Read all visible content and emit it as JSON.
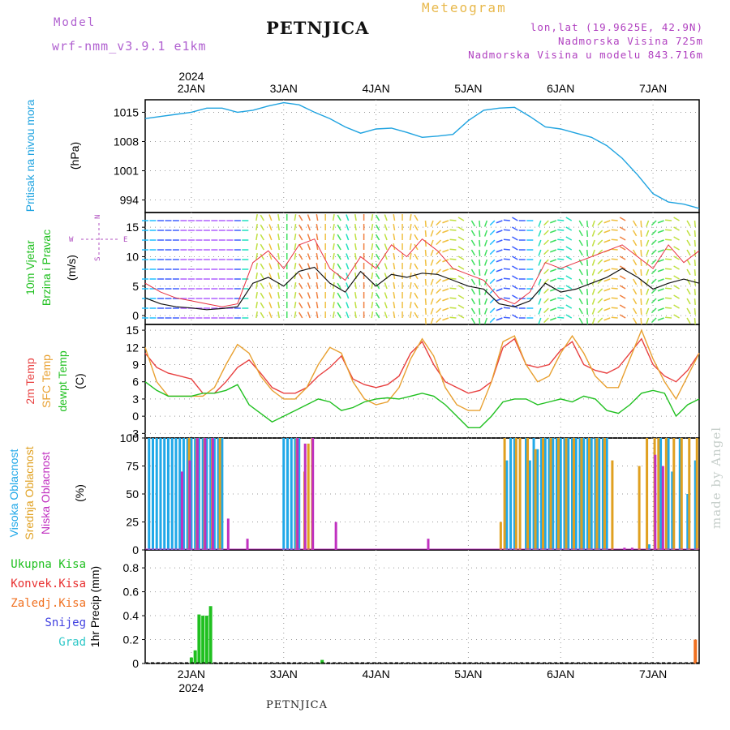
{
  "header": {
    "title": "PETNJICA",
    "meteogram": "Meteogram",
    "model_label": "Model",
    "model_name": "wrf-nmm_v3.9.1 e1km",
    "lonlat": "lon,lat (19.9625E, 42.9N)",
    "elevation": "Nadmorska Visina 725m",
    "model_elevation": "Nadmorska Visina u modelu 843.716m"
  },
  "footer": {
    "station": "PETNJICA",
    "credit": "made by Angel"
  },
  "colors": {
    "pressure": "#1fa3e0",
    "wind_speed": "#111111",
    "gust": "#e83040",
    "temp2m": "#e84040",
    "sfc": "#e8a030",
    "dewpt": "#20c020",
    "high_cloud": "#20a8e8",
    "mid_cloud": "#e0a020",
    "low_cloud": "#c030c0",
    "total_precip": "#20c020",
    "conv_precip": "#e83030",
    "frozen": "#f07020",
    "snow": "#4040e0",
    "hail": "#30c8c8"
  },
  "chart_data": [
    {
      "type": "line",
      "panel": "pressure",
      "ylabel": [
        "Pritisak na nivou mora",
        "(hPa)"
      ],
      "yticks": [
        994,
        1001,
        1008,
        1015
      ],
      "ylim": [
        991,
        1018
      ],
      "xlim": [
        0,
        144
      ],
      "x_day_labels": [
        "2JAN",
        "3JAN",
        "4JAN",
        "5JAN",
        "6JAN",
        "7JAN"
      ],
      "x_day_positions": [
        12,
        36,
        60,
        84,
        108,
        132
      ],
      "year": "2024",
      "grid": true,
      "series": [
        {
          "x": [
            0,
            4,
            8,
            12,
            16,
            20,
            24,
            28,
            32,
            36,
            40,
            44,
            48,
            52,
            56,
            60,
            64,
            68,
            72,
            76,
            80,
            84,
            88,
            92,
            96,
            100,
            104,
            108,
            112,
            116,
            120,
            124,
            128,
            132,
            136,
            140,
            144
          ],
          "y": [
            1013.5,
            1014,
            1014.5,
            1015,
            1016,
            1016,
            1015,
            1015.5,
            1016.5,
            1017.3,
            1016.8,
            1015,
            1013.5,
            1011.5,
            1010,
            1011,
            1011.2,
            1010.2,
            1009,
            1009.3,
            1009.7,
            1013,
            1015.5,
            1016,
            1016.2,
            1014,
            1011.5,
            1011,
            1010,
            1009,
            1007,
            1004,
            1000,
            995.5,
            993.5,
            993,
            992
          ]
        }
      ]
    },
    {
      "type": "line",
      "panel": "wind",
      "ylabel": [
        "10m Vjetar",
        "Brzina i Pravac",
        "(m/s)"
      ],
      "compass": [
        "N",
        "E",
        "S",
        "W"
      ],
      "yticks": [
        0,
        5,
        10,
        15
      ],
      "ylim": [
        -1.5,
        17.5
      ],
      "xlim": [
        0,
        144
      ],
      "grid": true,
      "series": [
        {
          "x": [
            0,
            4,
            8,
            12,
            16,
            20,
            24,
            28,
            32,
            36,
            40,
            44,
            48,
            52,
            56,
            60,
            64,
            68,
            72,
            76,
            80,
            84,
            88,
            92,
            96,
            100,
            104,
            108,
            112,
            116,
            120,
            124,
            128,
            132,
            136,
            140,
            144
          ],
          "y": [
            3,
            2,
            1.5,
            1.3,
            1,
            1.2,
            1.5,
            5.5,
            6.5,
            5,
            7.5,
            8.2,
            5.5,
            4,
            7.5,
            5,
            7,
            6.5,
            7.2,
            7,
            6,
            5,
            4.5,
            2,
            1.5,
            2.5,
            5.5,
            4,
            4.5,
            5.5,
            6.5,
            8,
            6.5,
            4.5,
            5.5,
            6.2,
            5.5
          ]
        },
        {
          "x": [
            0,
            4,
            8,
            12,
            16,
            20,
            24,
            28,
            32,
            36,
            40,
            44,
            48,
            52,
            56,
            60,
            64,
            68,
            72,
            76,
            80,
            84,
            88,
            92,
            96,
            100,
            104,
            108,
            112,
            116,
            120,
            124,
            128,
            132,
            136,
            140,
            144
          ],
          "y": [
            5.5,
            4,
            3,
            2.5,
            2,
            1.5,
            2,
            9,
            11,
            8,
            12,
            13,
            8,
            6,
            10,
            8,
            12,
            10,
            13,
            11,
            8,
            7,
            6,
            3,
            2,
            4,
            9,
            8,
            9,
            10,
            11,
            12,
            10,
            8,
            12,
            9,
            11
          ]
        }
      ]
    },
    {
      "type": "line",
      "panel": "temperature",
      "ylabel": [
        "2m Temp",
        "SFC Temp",
        "dewpt Temp",
        "(C)"
      ],
      "yticks": [
        -3,
        0,
        3,
        6,
        9,
        12,
        15
      ],
      "ylim": [
        -3.8,
        16
      ],
      "xlim": [
        0,
        144
      ],
      "grid": true,
      "series": [
        {
          "x": [
            0,
            3,
            6,
            9,
            12,
            15,
            18,
            21,
            24,
            27,
            30,
            33,
            36,
            39,
            42,
            45,
            48,
            51,
            54,
            57,
            60,
            63,
            66,
            69,
            72,
            75,
            78,
            81,
            84,
            87,
            90,
            93,
            96,
            99,
            102,
            105,
            108,
            111,
            114,
            117,
            120,
            123,
            126,
            129,
            132,
            135,
            138,
            141,
            144
          ],
          "y": [
            11,
            8.5,
            7.5,
            7,
            6.5,
            4,
            4,
            6,
            8.5,
            9.8,
            7.5,
            5,
            4,
            4,
            5,
            7,
            8.5,
            10.5,
            6.5,
            5.5,
            5,
            5.5,
            7,
            11,
            13,
            9,
            6,
            5,
            4,
            4.5,
            6,
            12,
            13.5,
            9,
            8.5,
            9,
            11.5,
            13,
            9,
            8,
            7.5,
            8.5,
            11,
            13.5,
            9,
            7,
            6,
            8,
            11
          ]
        },
        {
          "x": [
            0,
            3,
            6,
            9,
            12,
            15,
            18,
            21,
            24,
            27,
            30,
            33,
            36,
            39,
            42,
            45,
            48,
            51,
            54,
            57,
            60,
            63,
            66,
            69,
            72,
            75,
            78,
            81,
            84,
            87,
            90,
            93,
            96,
            99,
            102,
            105,
            108,
            111,
            114,
            117,
            120,
            123,
            126,
            129,
            132,
            135,
            138,
            141,
            144
          ],
          "y": [
            12,
            6,
            3.5,
            3.5,
            3.5,
            3.5,
            5,
            9,
            12.5,
            11,
            7,
            4.5,
            3,
            3,
            5,
            9,
            12,
            11,
            6,
            3,
            2,
            2.5,
            5,
            10,
            13.5,
            10.5,
            5,
            2,
            1,
            1,
            6,
            13,
            14,
            9,
            6,
            7,
            11,
            14,
            11,
            7,
            5,
            5,
            10,
            15,
            10,
            6,
            3,
            7,
            11
          ]
        },
        {
          "x": [
            0,
            3,
            6,
            9,
            12,
            15,
            18,
            21,
            24,
            27,
            30,
            33,
            36,
            39,
            42,
            45,
            48,
            51,
            54,
            57,
            60,
            63,
            66,
            69,
            72,
            75,
            78,
            81,
            84,
            87,
            90,
            93,
            96,
            99,
            102,
            105,
            108,
            111,
            114,
            117,
            120,
            123,
            126,
            129,
            132,
            135,
            138,
            141,
            144
          ],
          "y": [
            6,
            4.5,
            3.5,
            3.5,
            3.5,
            4,
            4,
            4.5,
            5.5,
            2,
            0.5,
            -1,
            0,
            1,
            2,
            3,
            2.5,
            1,
            1.5,
            2.5,
            3,
            3.2,
            3,
            3.5,
            4,
            3.5,
            2,
            0,
            -2,
            -2,
            0,
            2.5,
            3,
            3,
            2,
            2.5,
            3,
            2.5,
            3.5,
            3,
            1,
            0.5,
            2,
            4,
            4.5,
            4,
            0,
            2,
            3
          ]
        }
      ]
    },
    {
      "type": "bar",
      "panel": "cloud",
      "ylabel": [
        "Visoka Oblacnost",
        "Srednja Oblacnost",
        "Niska Oblacnost",
        "(%)"
      ],
      "yticks": [
        0,
        25,
        50,
        75,
        100
      ],
      "ylim": [
        0,
        100
      ],
      "xlim": [
        0,
        144
      ],
      "grid": true,
      "series": [
        {
          "name": "Visoka Oblacnost",
          "x": [
            1,
            2,
            3,
            4,
            5,
            6,
            7,
            8,
            9,
            10,
            11,
            12,
            13,
            14,
            15,
            16,
            17,
            18,
            19,
            20,
            36,
            37,
            38,
            39,
            40,
            94,
            95,
            96,
            99,
            100,
            101,
            102,
            103,
            104,
            105,
            106,
            107,
            108,
            109,
            110,
            111,
            112,
            113,
            114,
            115,
            116,
            117,
            118,
            119,
            120,
            131,
            134,
            136,
            137,
            139,
            141,
            143
          ],
          "y": [
            100,
            100,
            100,
            100,
            100,
            100,
            100,
            100,
            100,
            100,
            100,
            100,
            100,
            100,
            100,
            100,
            100,
            100,
            100,
            100,
            100,
            100,
            100,
            100,
            100,
            80,
            100,
            100,
            100,
            80,
            100,
            90,
            100,
            100,
            100,
            100,
            100,
            100,
            100,
            100,
            100,
            100,
            100,
            100,
            100,
            100,
            100,
            100,
            100,
            100,
            5,
            100,
            100,
            70,
            100,
            50,
            80
          ]
        },
        {
          "name": "Srednja Oblacnost",
          "x": [
            11,
            13,
            15,
            17,
            19,
            39,
            41,
            42,
            43,
            92,
            93,
            96,
            97,
            99,
            101,
            103,
            105,
            107,
            109,
            111,
            113,
            115,
            117,
            119,
            121,
            128,
            130,
            132,
            133,
            135,
            137,
            139,
            141,
            143
          ],
          "y": [
            100,
            100,
            100,
            100,
            100,
            100,
            70,
            95,
            100,
            25,
            100,
            100,
            100,
            100,
            90,
            100,
            100,
            100,
            100,
            100,
            100,
            100,
            100,
            100,
            80,
            75,
            100,
            100,
            100,
            100,
            100,
            100,
            100,
            100
          ]
        },
        {
          "name": "Niska Oblacnost",
          "x": [
            10,
            12,
            14,
            16,
            18,
            22,
            27,
            40,
            42,
            44,
            50,
            74,
            125,
            127,
            133,
            135
          ],
          "y": [
            70,
            80,
            100,
            100,
            100,
            28,
            10,
            100,
            95,
            100,
            25,
            10,
            2,
            2,
            85,
            75
          ]
        }
      ]
    },
    {
      "type": "bar",
      "panel": "precip",
      "ylabel": [
        "1hr Precip (mm)"
      ],
      "legend_entries": [
        "Ukupna Kisa",
        "Konvek.Kisa",
        "Zaledj.Kisa",
        "Snijeg",
        "Grad"
      ],
      "yticks": [
        0,
        0.2,
        0.4,
        0.6,
        0.8
      ],
      "ylim": [
        0,
        0.95
      ],
      "xlim": [
        0,
        144
      ],
      "x_day_labels": [
        "2JAN",
        "3JAN",
        "4JAN",
        "5JAN",
        "6JAN",
        "7JAN"
      ],
      "x_day_positions": [
        12,
        36,
        60,
        84,
        108,
        132
      ],
      "year": "2024",
      "grid": true,
      "series": [
        {
          "name": "Ukupna Kisa",
          "x": [
            12,
            13,
            14,
            15,
            16,
            17,
            46
          ],
          "y": [
            0.05,
            0.11,
            0.41,
            0.4,
            0.4,
            0.48,
            0.03
          ]
        },
        {
          "name": "Zaledj.Kisa",
          "x": [
            143
          ],
          "y": [
            0.2
          ]
        }
      ]
    }
  ]
}
